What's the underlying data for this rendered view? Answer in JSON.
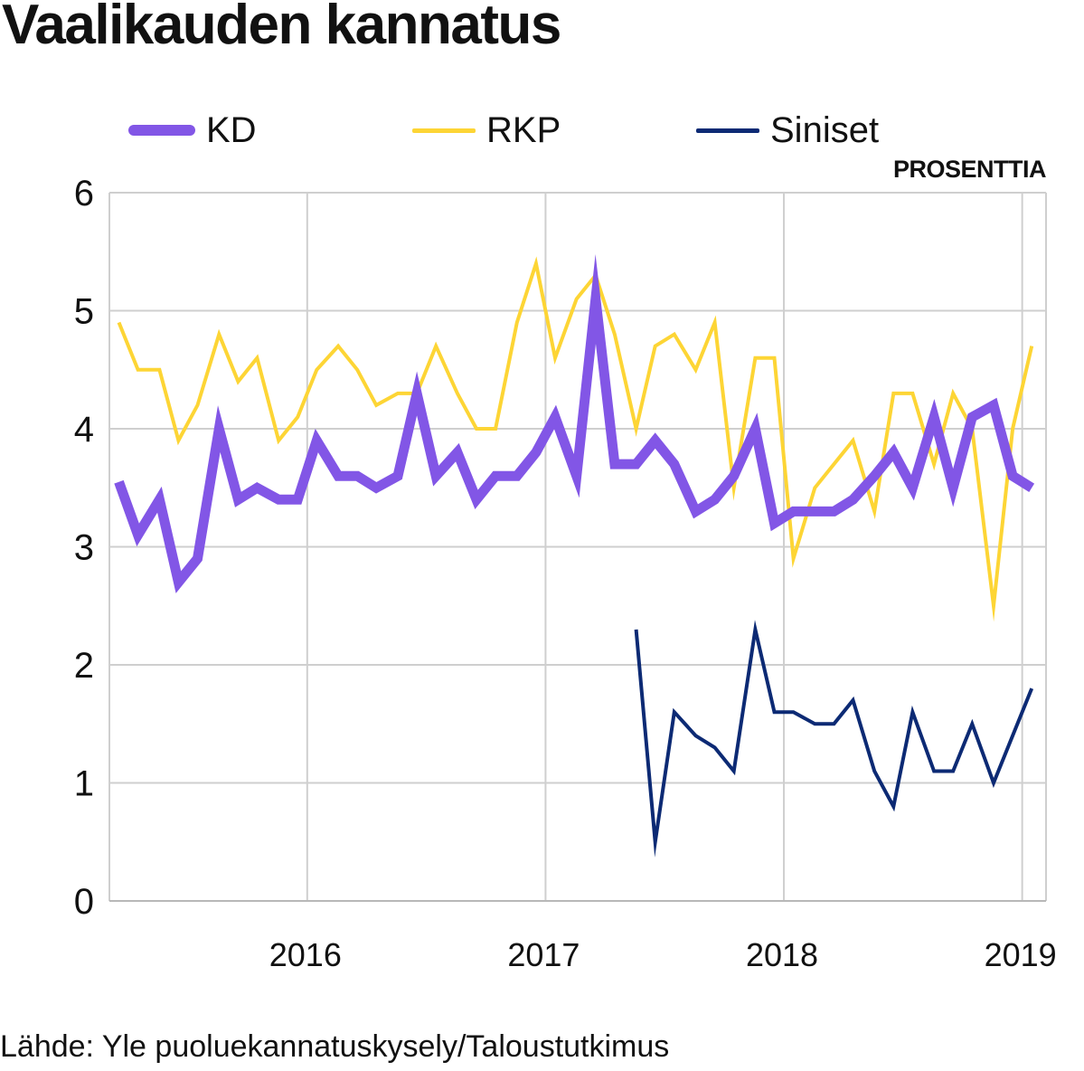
{
  "title": "Vaalikauden kannatus",
  "unit_label": "PROSENTTIA",
  "source": "Lähde: Yle puoluekannatuskysely/Taloustutkimus",
  "chart_data": {
    "type": "line",
    "title": "Vaalikauden kannatus",
    "ylabel": "PROSENTTIA",
    "xlabel": "",
    "ylim": [
      0,
      6
    ],
    "yticks": [
      "0",
      "1",
      "2",
      "3",
      "4",
      "5",
      "6"
    ],
    "xlim": [
      2015.17,
      2019.1
    ],
    "xticks": [
      {
        "value": 2016,
        "label": "2016"
      },
      {
        "value": 2017,
        "label": "2017"
      },
      {
        "value": 2018,
        "label": "2018"
      },
      {
        "value": 2019,
        "label": "2019"
      }
    ],
    "grid": true,
    "legend": "top",
    "x": [
      2015.21,
      2015.29,
      2015.38,
      2015.46,
      2015.54,
      2015.63,
      2015.71,
      2015.79,
      2015.88,
      2015.96,
      2016.04,
      2016.13,
      2016.21,
      2016.29,
      2016.38,
      2016.46,
      2016.54,
      2016.63,
      2016.71,
      2016.79,
      2016.88,
      2016.96,
      2017.04,
      2017.13,
      2017.21,
      2017.29,
      2017.38,
      2017.46,
      2017.54,
      2017.63,
      2017.71,
      2017.79,
      2017.88,
      2017.96,
      2018.04,
      2018.13,
      2018.21,
      2018.29,
      2018.38,
      2018.46,
      2018.54,
      2018.63,
      2018.71,
      2018.79,
      2018.88,
      2018.96,
      2019.04
    ],
    "series": [
      {
        "name": "KD",
        "color": "#8256e6",
        "values": [
          3.55,
          3.1,
          3.4,
          2.7,
          2.9,
          4.0,
          3.4,
          3.5,
          3.4,
          3.4,
          3.9,
          3.6,
          3.6,
          3.5,
          3.6,
          4.3,
          3.6,
          3.8,
          3.4,
          3.6,
          3.6,
          3.8,
          4.1,
          3.6,
          5.1,
          3.7,
          3.7,
          3.9,
          3.7,
          3.3,
          3.4,
          3.6,
          4.0,
          3.2,
          3.3,
          3.3,
          3.3,
          3.4,
          3.6,
          3.8,
          3.5,
          4.1,
          3.5,
          4.1,
          4.2,
          3.6,
          3.5
        ]
      },
      {
        "name": "RKP",
        "color": "#fdd535",
        "values": [
          4.9,
          4.5,
          4.5,
          3.9,
          4.2,
          4.8,
          4.4,
          4.6,
          3.9,
          4.1,
          4.5,
          4.7,
          4.5,
          4.2,
          4.3,
          4.3,
          4.7,
          4.3,
          4.0,
          4.0,
          4.9,
          5.4,
          4.6,
          5.1,
          5.3,
          4.8,
          4.0,
          4.7,
          4.8,
          4.5,
          4.9,
          3.5,
          4.6,
          4.6,
          2.9,
          3.5,
          3.7,
          3.9,
          3.3,
          4.3,
          4.3,
          3.7,
          4.3,
          4.0,
          2.5,
          4.0,
          4.7
        ]
      },
      {
        "name": "Siniset",
        "color": "#0c2a74",
        "values": [
          null,
          null,
          null,
          null,
          null,
          null,
          null,
          null,
          null,
          null,
          null,
          null,
          null,
          null,
          null,
          null,
          null,
          null,
          null,
          null,
          null,
          null,
          null,
          null,
          null,
          null,
          2.3,
          0.5,
          1.6,
          1.4,
          1.3,
          1.1,
          2.3,
          1.6,
          1.6,
          1.5,
          1.5,
          1.7,
          1.1,
          0.8,
          1.6,
          1.1,
          1.1,
          1.5,
          1.0,
          1.4,
          1.8
        ]
      }
    ]
  }
}
